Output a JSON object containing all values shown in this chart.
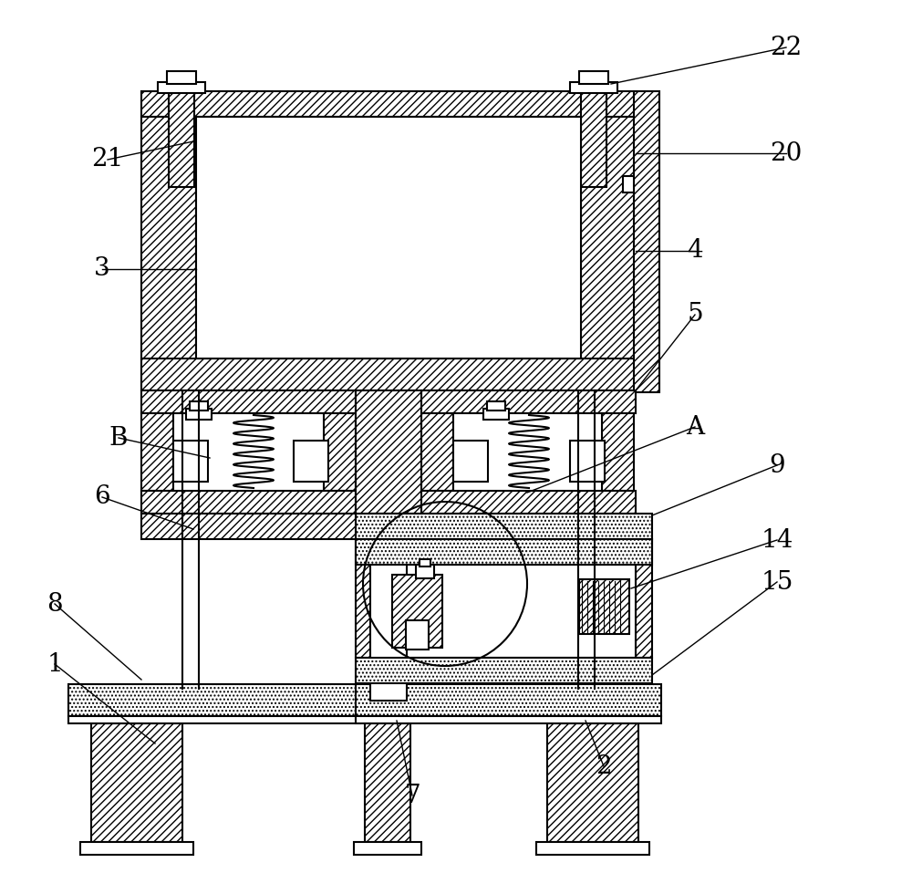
{
  "bg_color": "#ffffff",
  "lw": 1.5,
  "lw_thin": 1.0,
  "hatch_dense": "////",
  "hatch_dot": "....",
  "fig_width": 10.0,
  "fig_height": 9.57
}
